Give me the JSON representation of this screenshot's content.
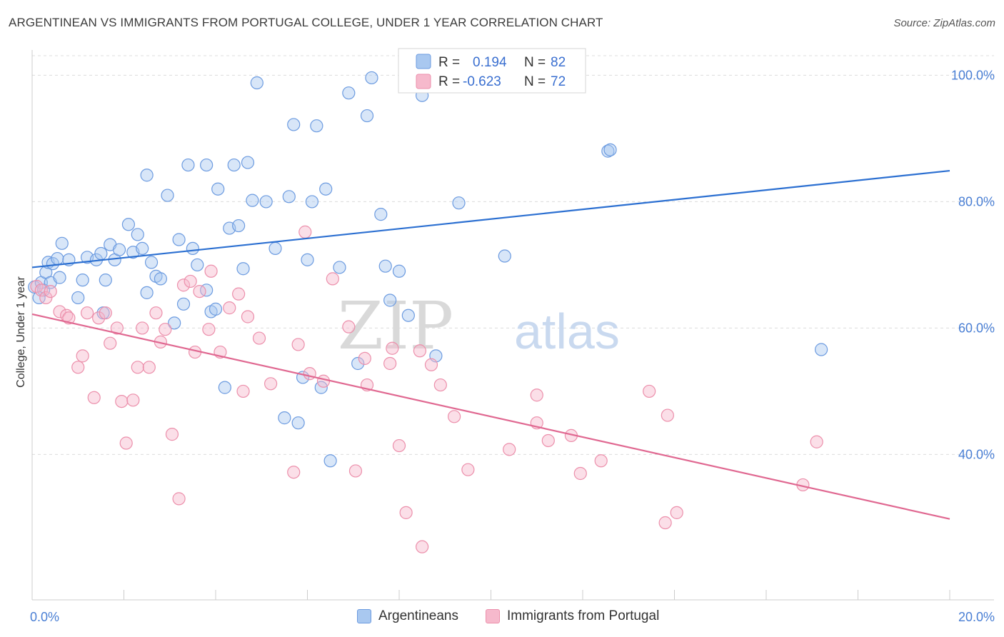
{
  "title": "ARGENTINEAN VS IMMIGRANTS FROM PORTUGAL COLLEGE, UNDER 1 YEAR CORRELATION CHART",
  "source": "Source: ZipAtlas.com",
  "watermark": {
    "zip": "ZIP",
    "atlas": "atlas"
  },
  "colors": {
    "blue_fill": "#a9c8f0",
    "blue_stroke": "#6c9be0",
    "blue_line": "#2b6fd1",
    "pink_fill": "#f6b9cc",
    "pink_stroke": "#ec8fab",
    "pink_line": "#e06891",
    "tick_text": "#4a7fd4",
    "grid": "#dcdcdc"
  },
  "legend_box": {
    "rows": [
      {
        "r_label": "R =",
        "r_value": "0.194",
        "n_label": "N =",
        "n_value": "82"
      },
      {
        "r_label": "R =",
        "r_value": "-0.623",
        "n_label": "N =",
        "n_value": "72"
      }
    ]
  },
  "bottom_legend": {
    "series1": "Argentineans",
    "series2": "Immigrants from Portugal"
  },
  "chart_data": {
    "type": "scatter",
    "title": "ARGENTINEAN VS IMMIGRANTS FROM PORTUGAL COLLEGE, UNDER 1 YEAR CORRELATION CHART",
    "xlabel": "",
    "ylabel": "College, Under 1 year",
    "xlim": [
      0,
      20
    ],
    "ylim": [
      17,
      104
    ],
    "x_tick_labels": [
      "0.0%",
      "20.0%"
    ],
    "y_ticks": [
      40,
      60,
      80,
      100
    ],
    "y_tick_labels": [
      "40.0%",
      "60.0%",
      "80.0%",
      "100.0%"
    ],
    "grid": "horizontal dashed",
    "legend_placement": "top-center",
    "series": [
      {
        "name": "Argentineans",
        "r": 0.194,
        "n": 82,
        "trend": [
          [
            0,
            69.6
          ],
          [
            20,
            84.9
          ]
        ],
        "points": [
          [
            0.05,
            66.5
          ],
          [
            0.2,
            67.2
          ],
          [
            0.25,
            66.0
          ],
          [
            0.3,
            68.8
          ],
          [
            0.35,
            70.4
          ],
          [
            0.4,
            67.2
          ],
          [
            0.45,
            70.2
          ],
          [
            0.55,
            71.0
          ],
          [
            0.6,
            68.0
          ],
          [
            0.65,
            73.4
          ],
          [
            0.8,
            70.8
          ],
          [
            1.0,
            64.8
          ],
          [
            1.1,
            67.6
          ],
          [
            1.2,
            71.2
          ],
          [
            1.4,
            70.8
          ],
          [
            1.5,
            71.8
          ],
          [
            1.6,
            67.6
          ],
          [
            1.7,
            73.2
          ],
          [
            1.8,
            70.8
          ],
          [
            1.9,
            72.4
          ],
          [
            2.1,
            76.4
          ],
          [
            2.2,
            72.0
          ],
          [
            2.3,
            74.8
          ],
          [
            2.4,
            72.6
          ],
          [
            2.5,
            84.2
          ],
          [
            2.6,
            70.4
          ],
          [
            2.7,
            68.2
          ],
          [
            2.8,
            67.8
          ],
          [
            2.95,
            81.0
          ],
          [
            3.1,
            60.8
          ],
          [
            3.2,
            74.0
          ],
          [
            3.3,
            63.8
          ],
          [
            3.4,
            85.8
          ],
          [
            3.5,
            72.6
          ],
          [
            3.6,
            70.0
          ],
          [
            3.8,
            85.8
          ],
          [
            3.9,
            62.6
          ],
          [
            4.05,
            82.0
          ],
          [
            4.2,
            50.6
          ],
          [
            4.3,
            75.8
          ],
          [
            4.4,
            85.8
          ],
          [
            4.5,
            76.2
          ],
          [
            4.6,
            69.4
          ],
          [
            4.7,
            86.2
          ],
          [
            4.8,
            80.2
          ],
          [
            4.9,
            98.8
          ],
          [
            5.1,
            80.0
          ],
          [
            5.3,
            72.6
          ],
          [
            5.5,
            45.8
          ],
          [
            5.6,
            80.8
          ],
          [
            5.7,
            92.2
          ],
          [
            5.8,
            45.0
          ],
          [
            5.9,
            52.2
          ],
          [
            6.0,
            70.8
          ],
          [
            6.1,
            80.0
          ],
          [
            6.2,
            92.0
          ],
          [
            6.3,
            50.6
          ],
          [
            6.4,
            82.0
          ],
          [
            6.5,
            39.0
          ],
          [
            6.7,
            69.6
          ],
          [
            6.9,
            97.2
          ],
          [
            7.1,
            54.4
          ],
          [
            7.3,
            93.6
          ],
          [
            7.4,
            99.6
          ],
          [
            7.6,
            78.0
          ],
          [
            7.7,
            69.8
          ],
          [
            7.8,
            64.4
          ],
          [
            8.0,
            69.0
          ],
          [
            8.2,
            62.0
          ],
          [
            8.5,
            96.8
          ],
          [
            8.8,
            55.6
          ],
          [
            9.2,
            99.6
          ],
          [
            9.3,
            79.8
          ],
          [
            10.3,
            71.4
          ],
          [
            12.55,
            88.0
          ],
          [
            12.6,
            88.2
          ],
          [
            17.2,
            56.6
          ],
          [
            0.15,
            64.8
          ],
          [
            1.55,
            62.4
          ],
          [
            2.5,
            65.6
          ],
          [
            3.8,
            66.0
          ],
          [
            4.0,
            63.0
          ]
        ]
      },
      {
        "name": "Immigrants from Portugal",
        "r": -0.623,
        "n": 72,
        "trend": [
          [
            0,
            62.2
          ],
          [
            20,
            29.8
          ]
        ],
        "points": [
          [
            0.1,
            66.6
          ],
          [
            0.2,
            66.0
          ],
          [
            0.3,
            64.8
          ],
          [
            0.4,
            65.8
          ],
          [
            0.6,
            62.6
          ],
          [
            0.75,
            62.0
          ],
          [
            0.8,
            61.6
          ],
          [
            1.0,
            53.8
          ],
          [
            1.1,
            55.6
          ],
          [
            1.2,
            62.4
          ],
          [
            1.35,
            49.0
          ],
          [
            1.45,
            61.6
          ],
          [
            1.6,
            62.4
          ],
          [
            1.7,
            57.6
          ],
          [
            1.85,
            60.0
          ],
          [
            1.95,
            48.4
          ],
          [
            2.05,
            41.8
          ],
          [
            2.2,
            48.6
          ],
          [
            2.3,
            53.8
          ],
          [
            2.4,
            60.0
          ],
          [
            2.55,
            53.8
          ],
          [
            2.7,
            62.4
          ],
          [
            2.8,
            57.8
          ],
          [
            2.9,
            59.8
          ],
          [
            3.05,
            43.2
          ],
          [
            3.2,
            33.0
          ],
          [
            3.3,
            66.8
          ],
          [
            3.45,
            67.4
          ],
          [
            3.55,
            56.2
          ],
          [
            3.65,
            65.8
          ],
          [
            3.85,
            59.8
          ],
          [
            3.9,
            69.0
          ],
          [
            4.1,
            56.2
          ],
          [
            4.3,
            63.2
          ],
          [
            4.5,
            65.4
          ],
          [
            4.6,
            50.0
          ],
          [
            4.7,
            61.8
          ],
          [
            4.95,
            58.4
          ],
          [
            5.2,
            51.2
          ],
          [
            5.7,
            37.2
          ],
          [
            5.8,
            57.4
          ],
          [
            5.95,
            75.2
          ],
          [
            6.05,
            52.8
          ],
          [
            6.35,
            51.6
          ],
          [
            6.55,
            67.8
          ],
          [
            6.9,
            60.2
          ],
          [
            7.05,
            37.4
          ],
          [
            7.25,
            55.2
          ],
          [
            7.3,
            51.0
          ],
          [
            7.8,
            54.4
          ],
          [
            7.85,
            56.8
          ],
          [
            8.0,
            41.4
          ],
          [
            8.15,
            30.8
          ],
          [
            8.5,
            25.4
          ],
          [
            8.45,
            56.4
          ],
          [
            8.7,
            54.2
          ],
          [
            8.9,
            51.0
          ],
          [
            9.2,
            46.0
          ],
          [
            9.5,
            37.6
          ],
          [
            10.4,
            40.8
          ],
          [
            11.0,
            49.4
          ],
          [
            11.0,
            45.0
          ],
          [
            11.25,
            42.2
          ],
          [
            11.75,
            43.0
          ],
          [
            11.95,
            37.0
          ],
          [
            12.4,
            39.0
          ],
          [
            13.45,
            50.0
          ],
          [
            13.85,
            46.2
          ],
          [
            13.8,
            29.2
          ],
          [
            14.05,
            30.8
          ],
          [
            16.8,
            35.2
          ],
          [
            17.1,
            42.0
          ]
        ]
      }
    ]
  }
}
